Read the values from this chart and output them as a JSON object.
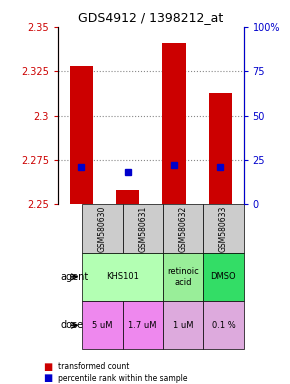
{
  "title": "GDS4912 / 1398212_at",
  "samples": [
    "GSM580630",
    "GSM580631",
    "GSM580632",
    "GSM580633"
  ],
  "bar_bottoms": [
    2.25,
    2.25,
    2.25,
    2.25
  ],
  "bar_tops": [
    2.328,
    2.258,
    2.341,
    2.313
  ],
  "percentile_values": [
    2.271,
    2.268,
    2.272,
    2.271
  ],
  "ylim": [
    2.25,
    2.35
  ],
  "yticks_left": [
    2.25,
    2.275,
    2.3,
    2.325,
    2.35
  ],
  "yticks_right": [
    0,
    25,
    50,
    75,
    100
  ],
  "ytick_labels_left": [
    "2.25",
    "2.275",
    "2.3",
    "2.325",
    "2.35"
  ],
  "ytick_labels_right": [
    "0",
    "25",
    "50",
    "75",
    "100%"
  ],
  "bar_color": "#cc0000",
  "dot_color": "#0000cc",
  "dose_labels": [
    "5 uM",
    "1.7 uM",
    "1 uM",
    "0.1 %"
  ],
  "dose_colors": [
    "#ee88ee",
    "#ee88ee",
    "#ddaadd",
    "#ddaadd"
  ],
  "sample_bg_color": "#cccccc",
  "legend_red": "transformed count",
  "legend_blue": "percentile rank within the sample",
  "grid_color": "#888888",
  "title_color": "#000000",
  "left_axis_color": "#cc0000",
  "right_axis_color": "#0000cc",
  "agent_groups": [
    {
      "cols": [
        0,
        1
      ],
      "text": "KHS101",
      "color": "#b3ffb3"
    },
    {
      "cols": [
        2
      ],
      "text": "retinoic\nacid",
      "color": "#99ee99"
    },
    {
      "cols": [
        3
      ],
      "text": "DMSO",
      "color": "#33dd66"
    }
  ]
}
